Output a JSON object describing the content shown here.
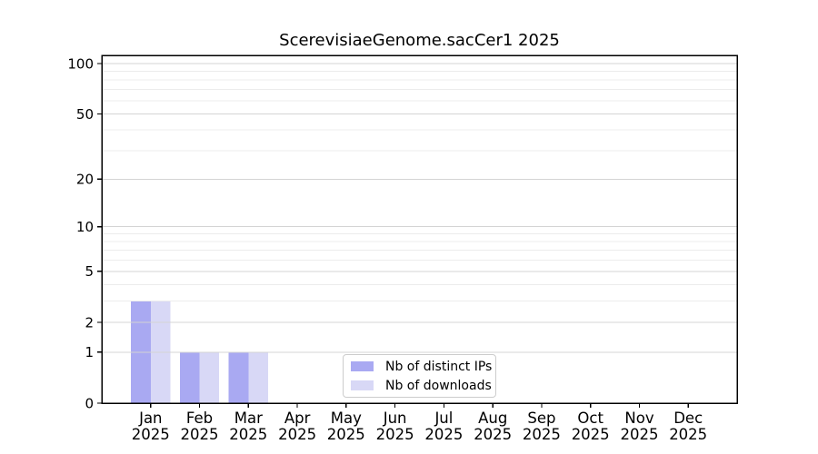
{
  "chart_data": {
    "type": "bar",
    "title": "ScerevisiaeGenome.sacCer1 2025",
    "categories": [
      "Jan 2025",
      "Feb 2025",
      "Mar 2025",
      "Apr 2025",
      "May 2025",
      "Jun 2025",
      "Jul 2025",
      "Aug 2025",
      "Sep 2025",
      "Oct 2025",
      "Nov 2025",
      "Dec 2025"
    ],
    "series": [
      {
        "name": "Nb of distinct IPs",
        "color": "#a9a9f2",
        "values": [
          3,
          1,
          1,
          0,
          0,
          0,
          0,
          0,
          0,
          0,
          0,
          0
        ]
      },
      {
        "name": "Nb of downloads",
        "color": "#d8d8f6",
        "values": [
          3,
          1,
          1,
          0,
          0,
          0,
          0,
          0,
          0,
          0,
          0,
          0
        ]
      }
    ],
    "y_axis": {
      "scale": "log1p",
      "tick_values": [
        0,
        1,
        2,
        5,
        10,
        20,
        50,
        100
      ],
      "minor_gridline_values": [
        3,
        4,
        6,
        7,
        8,
        9,
        30,
        40,
        60,
        70,
        80,
        90
      ],
      "ylim": [
        0,
        112
      ]
    },
    "legend": {
      "position": "lower center",
      "entries": [
        "Nb of distinct IPs",
        "Nb of downloads"
      ]
    },
    "grid": true,
    "xlabel": "",
    "ylabel": ""
  },
  "colors": {
    "background": "#ffffff",
    "axis": "#000000",
    "text": "#000000",
    "grid_major": "#d4d4d4",
    "grid_minor": "#ececec",
    "legend_border": "#cccccc"
  }
}
